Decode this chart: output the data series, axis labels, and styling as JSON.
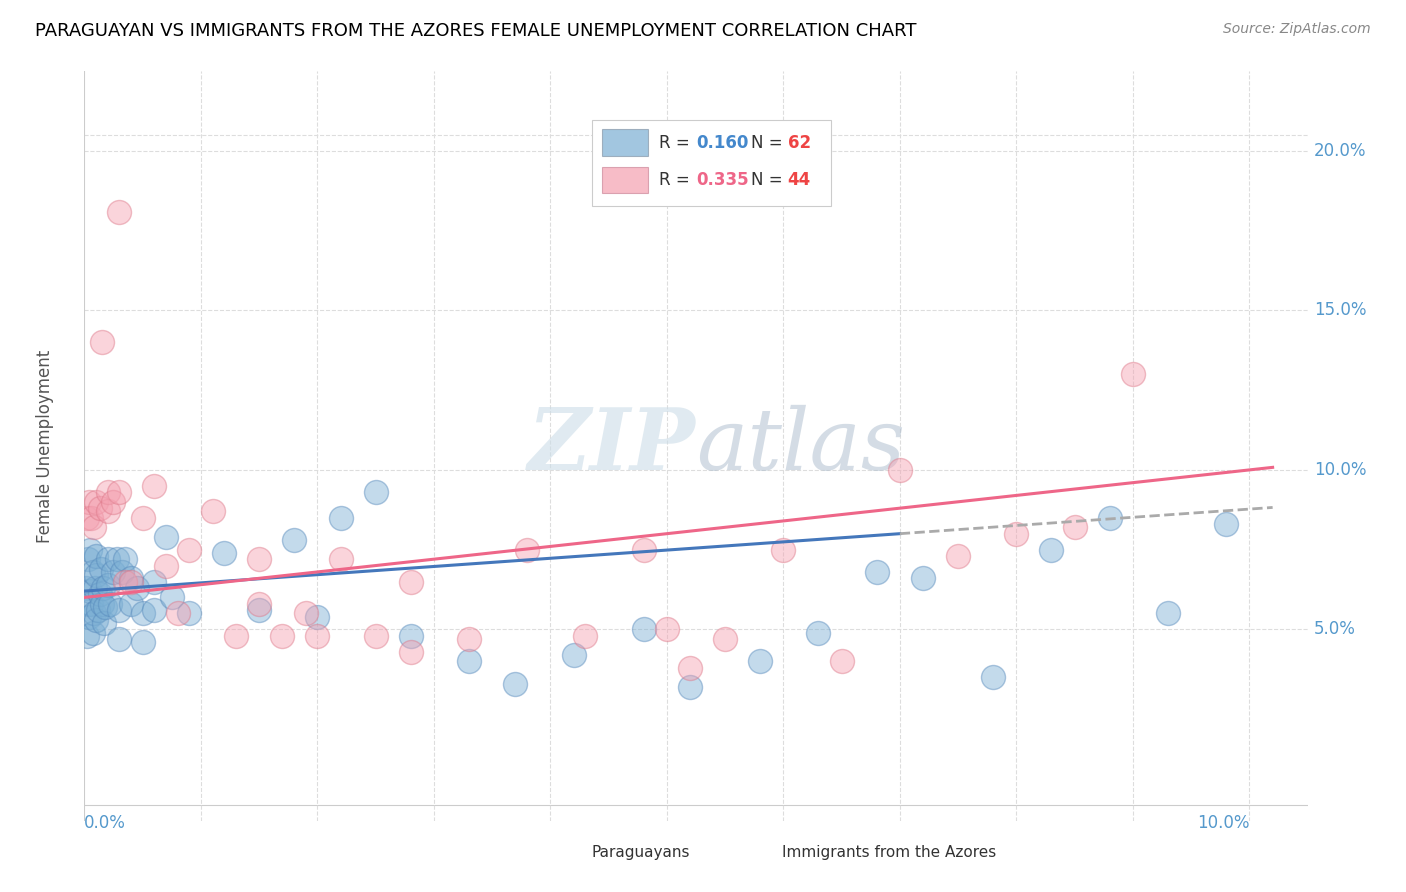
{
  "title": "PARAGUAYAN VS IMMIGRANTS FROM THE AZORES FEMALE UNEMPLOYMENT CORRELATION CHART",
  "source": "Source: ZipAtlas.com",
  "ylabel": "Female Unemployment",
  "legend1_label": "Paraguayans",
  "legend2_label": "Immigrants from the Azores",
  "r1": "0.160",
  "n1": "62",
  "r2": "0.335",
  "n2": "44",
  "color_blue": "#7BAFD4",
  "color_pink": "#F4A0B0",
  "color_blue_line": "#4477BB",
  "color_pink_line": "#EE6688",
  "color_blue_text": "#4488CC",
  "color_pink_text": "#EE6688",
  "color_n_text": "#EE4444",
  "color_axis_text": "#5599CC",
  "watermark": "ZIPatlas",
  "blue_points_x": [
    0.0001,
    0.0002,
    0.0003,
    0.0003,
    0.0004,
    0.0005,
    0.0005,
    0.0006,
    0.0007,
    0.0007,
    0.0008,
    0.0009,
    0.001,
    0.001,
    0.001,
    0.0012,
    0.0013,
    0.0014,
    0.0015,
    0.0016,
    0.0017,
    0.0018,
    0.002,
    0.002,
    0.0022,
    0.0025,
    0.0028,
    0.003,
    0.003,
    0.0032,
    0.0035,
    0.004,
    0.004,
    0.0045,
    0.005,
    0.005,
    0.006,
    0.006,
    0.007,
    0.0075,
    0.009,
    0.012,
    0.015,
    0.018,
    0.02,
    0.022,
    0.025,
    0.028,
    0.033,
    0.037,
    0.042,
    0.048,
    0.052,
    0.058,
    0.063,
    0.068,
    0.072,
    0.078,
    0.083,
    0.088,
    0.093,
    0.098
  ],
  "blue_points_y": [
    0.063,
    0.048,
    0.058,
    0.072,
    0.054,
    0.062,
    0.075,
    0.058,
    0.068,
    0.049,
    0.055,
    0.063,
    0.053,
    0.067,
    0.073,
    0.056,
    0.061,
    0.069,
    0.058,
    0.063,
    0.052,
    0.057,
    0.064,
    0.072,
    0.058,
    0.068,
    0.072,
    0.056,
    0.047,
    0.068,
    0.072,
    0.058,
    0.066,
    0.063,
    0.055,
    0.046,
    0.056,
    0.065,
    0.079,
    0.06,
    0.055,
    0.074,
    0.056,
    0.078,
    0.054,
    0.085,
    0.093,
    0.048,
    0.04,
    0.033,
    0.042,
    0.05,
    0.032,
    0.04,
    0.049,
    0.068,
    0.066,
    0.035,
    0.075,
    0.085,
    0.055,
    0.083
  ],
  "pink_points_x": [
    0.0002,
    0.0004,
    0.0006,
    0.0008,
    0.001,
    0.0013,
    0.0015,
    0.002,
    0.002,
    0.0025,
    0.003,
    0.003,
    0.0035,
    0.004,
    0.005,
    0.006,
    0.007,
    0.008,
    0.009,
    0.011,
    0.013,
    0.015,
    0.017,
    0.019,
    0.022,
    0.025,
    0.028,
    0.033,
    0.038,
    0.043,
    0.048,
    0.05,
    0.055,
    0.06,
    0.065,
    0.07,
    0.075,
    0.08,
    0.085,
    0.09,
    0.015,
    0.02,
    0.028,
    0.052
  ],
  "pink_points_y": [
    0.085,
    0.09,
    0.085,
    0.082,
    0.09,
    0.088,
    0.14,
    0.087,
    0.093,
    0.09,
    0.093,
    0.181,
    0.065,
    0.065,
    0.085,
    0.095,
    0.07,
    0.055,
    0.075,
    0.087,
    0.048,
    0.058,
    0.048,
    0.055,
    0.072,
    0.048,
    0.065,
    0.047,
    0.075,
    0.048,
    0.075,
    0.05,
    0.047,
    0.075,
    0.04,
    0.1,
    0.073,
    0.08,
    0.082,
    0.13,
    0.072,
    0.048,
    0.043,
    0.038
  ],
  "xlim": [
    0.0,
    0.105
  ],
  "ylim": [
    -0.01,
    0.225
  ],
  "ytick_values": [
    0.05,
    0.1,
    0.15,
    0.2
  ],
  "ytick_labels": [
    "5.0%",
    "10.0%",
    "15.0%",
    "20.0%"
  ]
}
